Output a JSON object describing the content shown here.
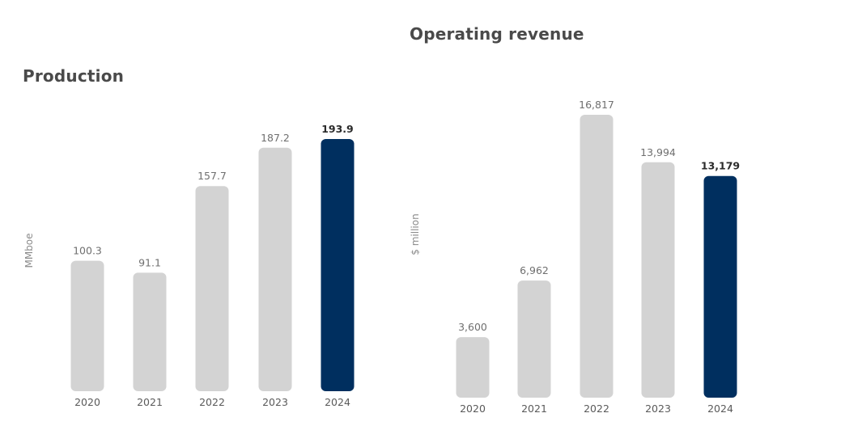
{
  "chart_data": [
    {
      "type": "bar",
      "title": "Production",
      "ylabel": "MMboe",
      "categories": [
        "2020",
        "2021",
        "2022",
        "2023",
        "2024"
      ],
      "values": [
        100.3,
        91.1,
        157.7,
        187.2,
        193.9
      ],
      "value_labels": [
        "100.3",
        "91.1",
        "157.7",
        "187.2",
        "193.9"
      ],
      "highlight_index": 4,
      "colors": {
        "default": "#d3d3d3",
        "highlight": "#002f5f"
      }
    },
    {
      "type": "bar",
      "title": "Operating revenue",
      "ylabel": "$ million",
      "categories": [
        "2020",
        "2021",
        "2022",
        "2023",
        "2024"
      ],
      "values": [
        3600,
        6962,
        16817,
        13994,
        13179
      ],
      "value_labels": [
        "3,600",
        "6,962",
        "16,817",
        "13,994",
        "13,179"
      ],
      "highlight_index": 4,
      "colors": {
        "default": "#d3d3d3",
        "highlight": "#002f5f"
      }
    }
  ]
}
